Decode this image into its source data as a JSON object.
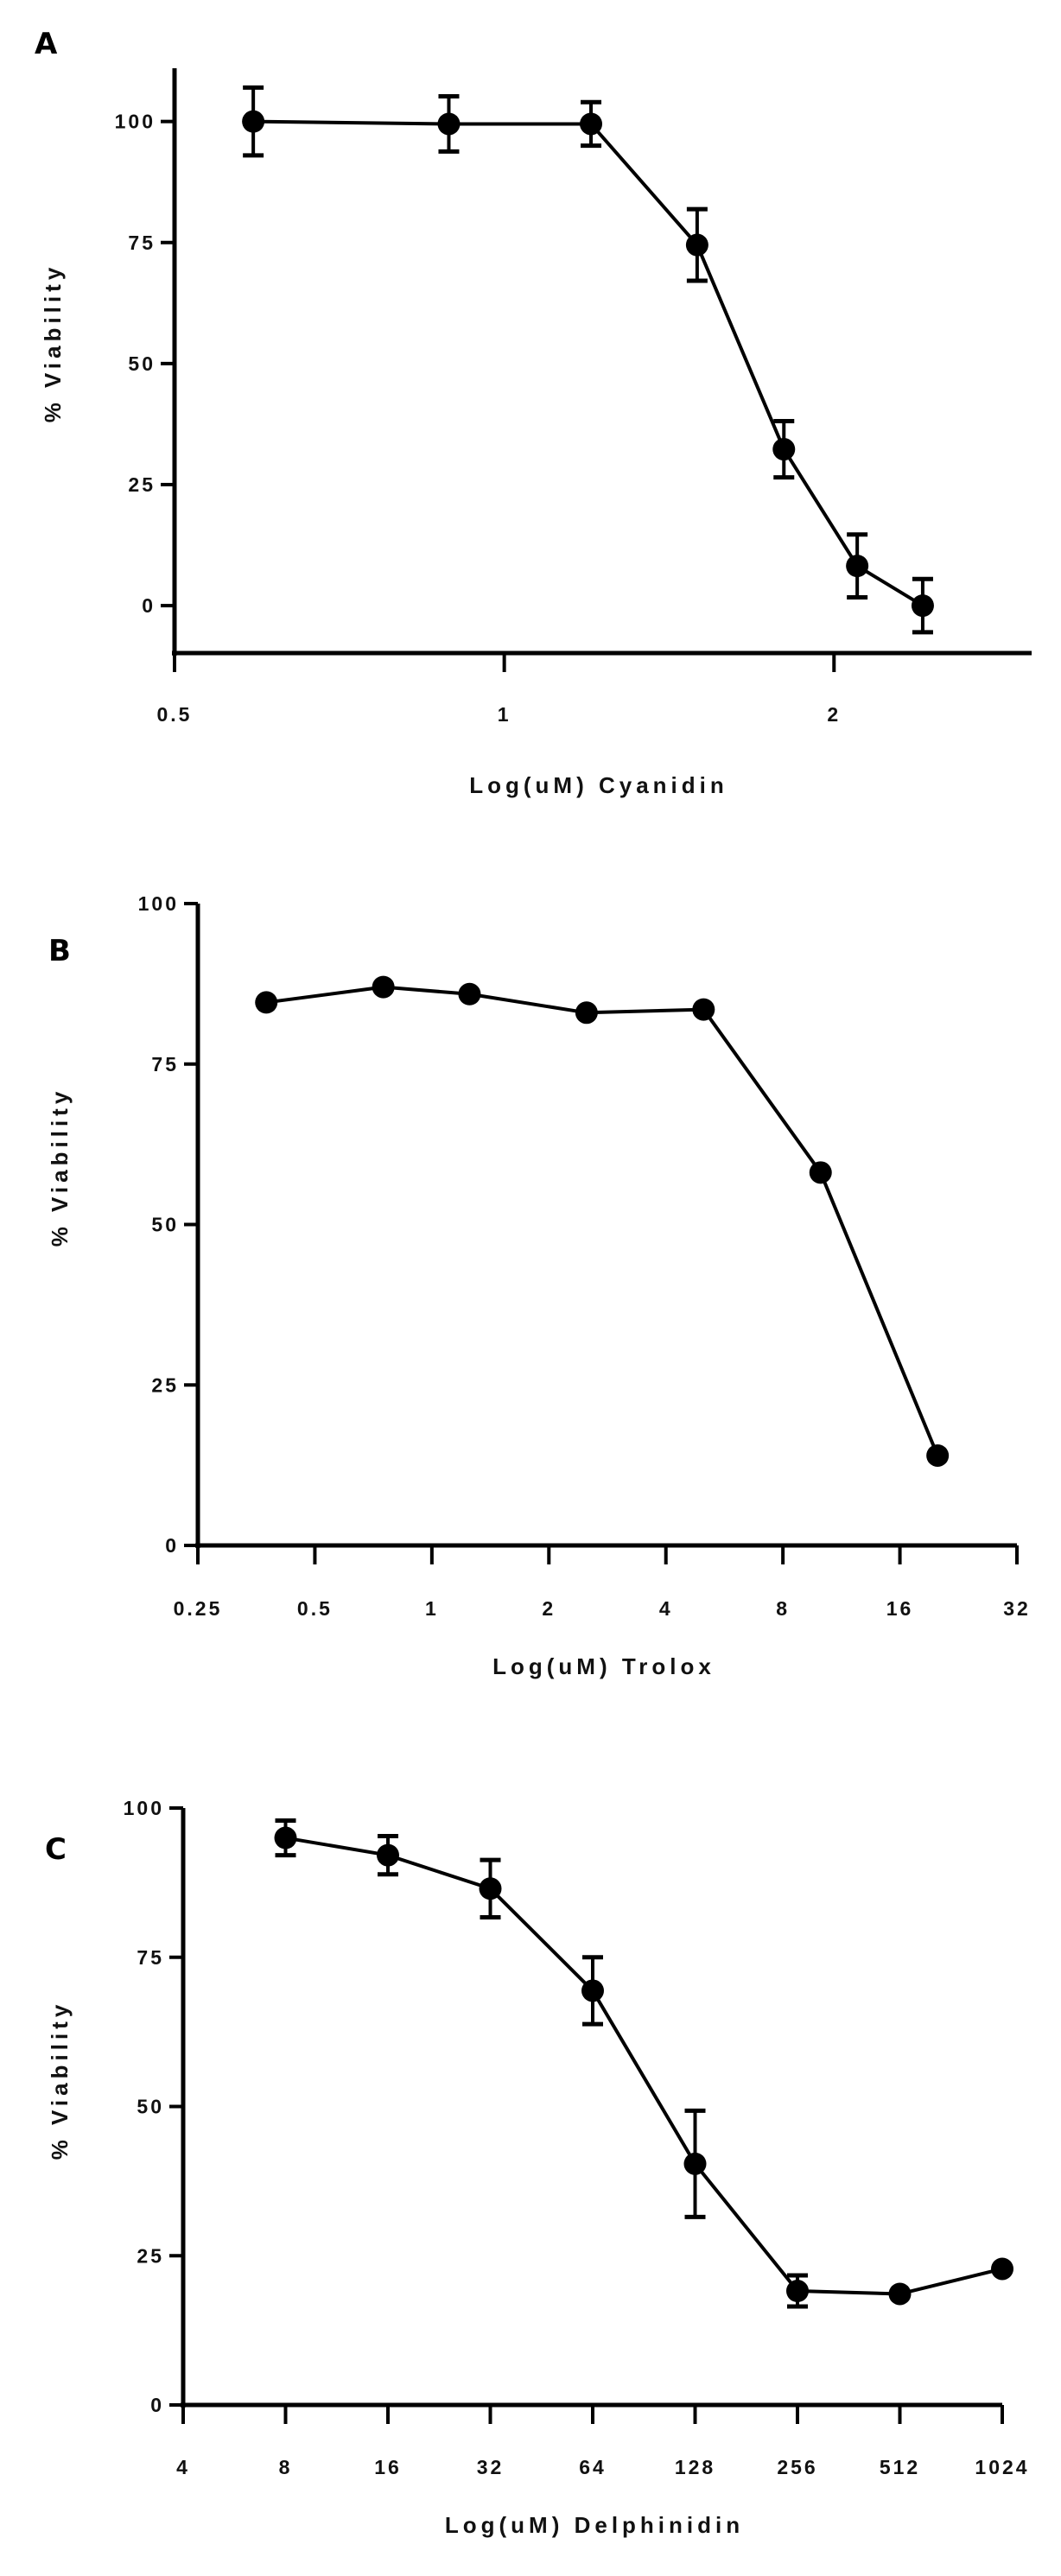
{
  "chart_data": [
    {
      "type": "line",
      "panel_label": "A",
      "xlabel": "Log(uM) Cyanidin",
      "ylabel": "% Viability",
      "xscale": "log2",
      "xlim": [
        0.5,
        3.03
      ],
      "ylim": [
        -9.8,
        111
      ],
      "xticks": [
        0.5,
        1,
        2
      ],
      "xtick_labels": [
        "0.5",
        "1",
        "2"
      ],
      "yticks": [
        0,
        25,
        50,
        75,
        100
      ],
      "ytick_labels": [
        "0",
        "25",
        "50",
        "75",
        "100"
      ],
      "grid": false,
      "series": [
        {
          "name": "Cyanidin",
          "x": [
            0.59,
            0.89,
            1.2,
            1.5,
            1.8,
            2.1,
            2.41
          ],
          "y": [
            100,
            99.5,
            99.5,
            74.5,
            32.3,
            8.2,
            0
          ],
          "err": [
            7,
            5.7,
            4.5,
            7.4,
            5.8,
            6.5,
            5.5
          ]
        }
      ]
    },
    {
      "type": "line",
      "panel_label": "B",
      "xlabel": "Log(uM) Trolox",
      "ylabel": "% Viability",
      "xscale": "log2",
      "xlim": [
        0.25,
        32
      ],
      "ylim": [
        0,
        100
      ],
      "xticks": [
        0.25,
        0.5,
        1,
        2,
        4,
        8,
        16,
        32
      ],
      "xtick_labels": [
        "0.25",
        "0.5",
        "1",
        "2",
        "4",
        "8",
        "16",
        "32"
      ],
      "yticks": [
        0,
        25,
        50,
        75,
        100
      ],
      "ytick_labels": [
        "0",
        "25",
        "50",
        "75",
        "100"
      ],
      "grid": false,
      "series": [
        {
          "name": "Trolox",
          "x": [
            0.375,
            0.75,
            1.25,
            2.5,
            5,
            10,
            20
          ],
          "y": [
            84.6,
            87.0,
            85.9,
            83.0,
            83.5,
            58.1,
            14.0
          ],
          "err": [
            0,
            0,
            0,
            0,
            0,
            0,
            0
          ]
        }
      ]
    },
    {
      "type": "line",
      "panel_label": "C",
      "xlabel": "Log(uM) Delphinidin",
      "ylabel": "% Viability",
      "xscale": "log2",
      "xlim": [
        4,
        1024
      ],
      "ylim": [
        0,
        100
      ],
      "xticks": [
        4,
        8,
        16,
        32,
        64,
        128,
        256,
        512,
        1024
      ],
      "xtick_labels": [
        "4",
        "8",
        "16",
        "32",
        "64",
        "128",
        "256",
        "512",
        "1024"
      ],
      "yticks": [
        0,
        25,
        50,
        75,
        100
      ],
      "ytick_labels": [
        "0",
        "25",
        "50",
        "75",
        "100"
      ],
      "grid": false,
      "series": [
        {
          "name": "Delphinidin",
          "x": [
            8,
            16,
            32,
            64,
            128,
            256,
            512,
            1024
          ],
          "y": [
            95.0,
            92.1,
            86.5,
            69.4,
            40.4,
            19.1,
            18.6,
            22.8
          ],
          "err": [
            2.9,
            3.2,
            4.8,
            5.6,
            8.9,
            2.6,
            0,
            0
          ]
        }
      ]
    }
  ]
}
